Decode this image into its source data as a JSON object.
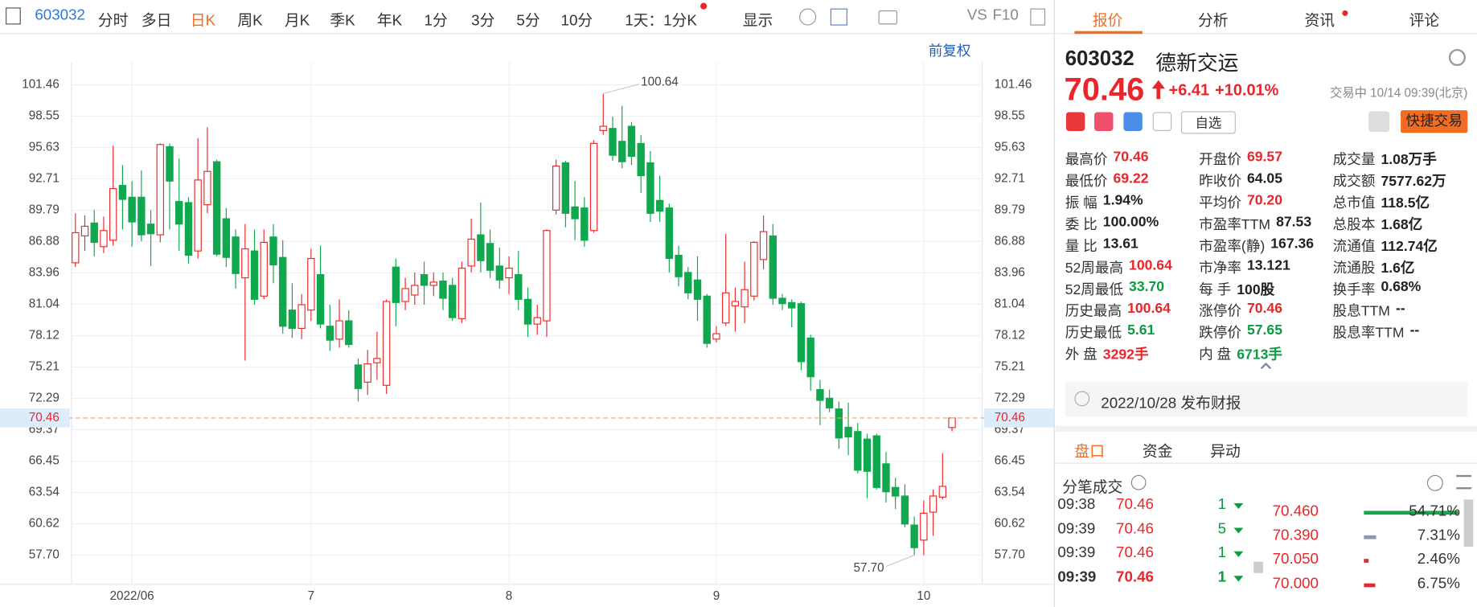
{
  "toolbar": {
    "code": "603032",
    "periods": [
      "分时",
      "多日",
      "日K",
      "周K",
      "月K",
      "季K",
      "年K",
      "1分",
      "3分",
      "5分",
      "10分"
    ],
    "active": 2,
    "range": "1天：1分K",
    "display": "显示",
    "vs": "VS",
    "f10": "F10",
    "adjust": "前复权"
  },
  "chart_data": {
    "type": "candlestick",
    "categories": [
      null,
      null,
      null,
      null,
      null,
      null,
      "2022/06",
      null,
      null,
      null,
      null,
      null,
      null,
      null,
      null,
      null,
      null,
      null,
      null,
      null,
      null,
      null,
      null,
      null,
      null,
      "7",
      null,
      null,
      null,
      null,
      null,
      null,
      null,
      null,
      null,
      null,
      null,
      null,
      null,
      null,
      null,
      null,
      null,
      null,
      null,
      null,
      "8",
      null,
      null,
      null,
      null,
      null,
      null,
      null,
      null,
      null,
      null,
      null,
      null,
      null,
      null,
      null,
      null,
      null,
      null,
      null,
      null,
      null,
      "9",
      null,
      null,
      null,
      null,
      null,
      null,
      null,
      null,
      null,
      null,
      null,
      null,
      null,
      null,
      null,
      null,
      null,
      null,
      null,
      null,
      null,
      "10",
      null,
      null,
      null
    ],
    "open": [
      84.9,
      87.4,
      88.6,
      86.4,
      87,
      92.1,
      91,
      91,
      88.5,
      87.5,
      95.7,
      90.6,
      90.5,
      86,
      90.3,
      94.3,
      89,
      87.3,
      83.5,
      86,
      81.8,
      87.3,
      85.4,
      80.5,
      78.8,
      80.5,
      83.8,
      79,
      77.8,
      79.5,
      75.4,
      73.8,
      75.6,
      73.5,
      84.5,
      81.3,
      81.9,
      83.8,
      82.8,
      83.2,
      82.8,
      79.7,
      84.6,
      87.5,
      86.7,
      84.6,
      83.5,
      83.8,
      81.5,
      79.2,
      79.5,
      89.8,
      94.2,
      90.1,
      90,
      87.9,
      97.2,
      97.4,
      96.2,
      97.6,
      96,
      94.2,
      90.7,
      90,
      85.6,
      84,
      83.3,
      81.8,
      77.8,
      79.3,
      80.9,
      80.8,
      81.8,
      85.2,
      87.4,
      81.6,
      81.2,
      81.1,
      77.9,
      73.1,
      72.3,
      71.3,
      69.6,
      69.2,
      68.5,
      68.8,
      66.2,
      64,
      63.2,
      60.5,
      59.1,
      61.7,
      63.1,
      69.57
    ],
    "close": [
      87.7,
      88.3,
      86.8,
      87.9,
      91.8,
      90.8,
      88.7,
      87.5,
      87.6,
      95.9,
      92.5,
      88.5,
      85.6,
      92.6,
      93.4,
      85.7,
      85.4,
      83.9,
      86.2,
      81.5,
      86.8,
      84.7,
      79,
      78.8,
      81,
      85.3,
      79.2,
      77.7,
      79.5,
      77.3,
      73.2,
      75.5,
      76,
      81.3,
      81.2,
      82.5,
      82.8,
      82.8,
      83.1,
      81.6,
      79.8,
      84.4,
      87.1,
      85.1,
      84.2,
      83.3,
      84.4,
      81.5,
      79.2,
      79.8,
      87.9,
      93.9,
      89.5,
      89,
      87,
      96,
      97.6,
      94.9,
      94.3,
      94.8,
      93,
      89.5,
      89.7,
      85.3,
      83.6,
      82.1,
      81.5,
      77.4,
      78.3,
      82.1,
      81.3,
      82.4,
      86.8,
      87.8,
      81.6,
      81.1,
      80.7,
      75.7,
      74.3,
      72.1,
      71.4,
      68.6,
      68.7,
      65.6,
      65.5,
      64,
      63.6,
      63.2,
      60.6,
      58.4,
      61.6,
      63.2,
      64.1,
      70.46
    ],
    "high": [
      89.5,
      89.3,
      89.8,
      89.2,
      95.8,
      94,
      92.5,
      93.5,
      89.8,
      96,
      96,
      94.6,
      91,
      96.5,
      97.5,
      94.5,
      90,
      88,
      88.5,
      88,
      88,
      88.5,
      87,
      83,
      82,
      86.2,
      86.5,
      81,
      81.5,
      80.5,
      76,
      76.8,
      78.5,
      81.5,
      85.3,
      83.5,
      84,
      85,
      84,
      84,
      83.5,
      85,
      89,
      90.5,
      88,
      86.3,
      85.5,
      86,
      82.6,
      81,
      88,
      94.5,
      94.4,
      92.5,
      91,
      96.3,
      100.64,
      98.5,
      99.5,
      98,
      96.8,
      95.3,
      93,
      90.4,
      86.5,
      84.5,
      85.5,
      82,
      79,
      87.6,
      82.6,
      85,
      86.9,
      89.3,
      88.5,
      82,
      81.5,
      81.3,
      78.2,
      74,
      73.1,
      72,
      71.9,
      70,
      69,
      69,
      67.3,
      64.9,
      64.3,
      61.3,
      62.8,
      63.8,
      67.2,
      70.46
    ],
    "low": [
      84.5,
      86,
      85.5,
      85.8,
      86.5,
      88,
      86.4,
      86.9,
      84.6,
      86.8,
      88,
      86,
      84.8,
      85.3,
      89.5,
      85.5,
      84.5,
      82.5,
      75.8,
      81,
      81.5,
      83,
      78.3,
      77.9,
      77.8,
      79.5,
      78.8,
      76.7,
      77,
      77,
      72,
      72.6,
      74,
      72.7,
      79,
      80.5,
      81,
      81,
      81.8,
      80.5,
      79.5,
      79.3,
      84,
      84,
      83.5,
      82.5,
      82,
      80.5,
      78,
      78.2,
      78,
      89.4,
      88.2,
      87,
      86.4,
      87.7,
      96.8,
      94.4,
      93.7,
      94,
      91.4,
      88.7,
      88.7,
      84,
      82.7,
      81.5,
      79.5,
      77,
      77.5,
      79,
      78.5,
      79.3,
      81.4,
      84.3,
      81,
      80.5,
      78.9,
      74.9,
      73,
      69.8,
      71,
      67.6,
      67,
      65.3,
      63,
      63.8,
      62.6,
      62,
      60.3,
      57.7,
      57.7,
      59.5,
      62.9,
      69.22
    ],
    "up_color": "#ee2b2b",
    "down_color": "#10a84e",
    "price_line_color": "#f5a25d",
    "ylim": [
      55.16,
      105.84
    ],
    "yticks": [
      101.46,
      98.55,
      95.63,
      92.71,
      89.79,
      86.88,
      83.96,
      81.04,
      78.12,
      75.21,
      72.29,
      69.37,
      66.45,
      63.54,
      60.62,
      {
        "value": 57.7,
        "label": "57.70"
      }
    ],
    "annotations": [
      "100.64",
      "57.70"
    ],
    "grid": true
  },
  "panel": {
    "tabs": [
      "报价",
      "分析",
      "资讯",
      "评论"
    ],
    "code": "603032",
    "name": "德新交运",
    "price": "70.46",
    "change": "+6.41",
    "change_pct": "+10.01%",
    "status": "交易中 10/14 09:39(北京)",
    "watch": "自选",
    "quick_trade": "快捷交易",
    "stats": [
      [
        {
          "label": "最高价",
          "value": "70.46",
          "color": "#e8262b"
        },
        {
          "label": "最低价",
          "value": "69.22",
          "color": "#e8262b"
        },
        {
          "label": "振 幅",
          "value": "1.94%",
          "color": "#222"
        },
        {
          "label": "委 比",
          "value": "100.00%",
          "color": "#222"
        },
        {
          "label": "量 比",
          "value": "13.61",
          "color": "#222"
        },
        {
          "label": "52周最高",
          "value": "100.64",
          "color": "#e8262b"
        },
        {
          "label": "52周最低",
          "value": "33.70",
          "color": "#0d9b41"
        },
        {
          "label": "历史最高",
          "value": "100.64",
          "color": "#e8262b"
        },
        {
          "label": "历史最低",
          "value": "5.61",
          "color": "#0d9b41"
        },
        {
          "label": "外 盘",
          "value": "3292手",
          "color": "#e8262b"
        }
      ],
      [
        {
          "label": "开盘价",
          "value": "69.57",
          "color": "#e8262b"
        },
        {
          "label": "昨收价",
          "value": "64.05",
          "color": "#222"
        },
        {
          "label": "平均价",
          "value": "70.20",
          "color": "#e8262b"
        },
        {
          "label": "市盈率TTM",
          "value": "87.53",
          "color": "#222"
        },
        {
          "label": "市盈率(静)",
          "value": "167.36",
          "color": "#222"
        },
        {
          "label": "市净率",
          "value": "13.121",
          "color": "#222"
        },
        {
          "label": "每 手",
          "value": "100股",
          "color": "#222"
        },
        {
          "label": "涨停价",
          "value": "70.46",
          "color": "#e8262b"
        },
        {
          "label": "跌停价",
          "value": "57.65",
          "color": "#0d9b41"
        },
        {
          "label": "内 盘",
          "value": "6713手",
          "color": "#0d9b41"
        }
      ],
      [
        {
          "label": "成交量",
          "value": "1.08万手",
          "color": "#222"
        },
        {
          "label": "成交额",
          "value": "7577.62万",
          "color": "#222"
        },
        {
          "label": "总市值",
          "value": "118.5亿",
          "color": "#222"
        },
        {
          "label": "总股本",
          "value": "1.68亿",
          "color": "#222"
        },
        {
          "label": "流通值",
          "value": "112.74亿",
          "color": "#222"
        },
        {
          "label": "流通股",
          "value": "1.6亿",
          "color": "#222"
        },
        {
          "label": "换手率",
          "value": "0.68%",
          "color": "#222"
        },
        {
          "label": "股息TTM",
          "value": "--",
          "color": "#222"
        },
        {
          "label": "股息率TTM",
          "value": "--",
          "color": "#222"
        }
      ]
    ],
    "notice": "2022/10/28 发布财报",
    "sub_tabs": [
      "盘口",
      "资金",
      "异动"
    ],
    "trades_title": "分笔成交",
    "trades": [
      {
        "time": "09:38",
        "price": "70.46",
        "qty": "1"
      },
      {
        "time": "09:39",
        "price": "70.46",
        "qty": "5"
      },
      {
        "time": "09:39",
        "price": "70.46",
        "qty": "1"
      },
      {
        "time": "09:39",
        "price": "70.46",
        "qty": "1"
      }
    ],
    "book": [
      {
        "price": "70.460",
        "pct": 54.71,
        "pct_label": "54.71%",
        "color": "#14a84a"
      },
      {
        "price": "70.390",
        "pct": 7.31,
        "pct_label": "7.31%",
        "color": "#8a9aab"
      },
      {
        "price": "70.050",
        "pct": 2.46,
        "pct_label": "2.46%",
        "color": "#e8262b"
      },
      {
        "price": "70.000",
        "pct": 6.75,
        "pct_label": "6.75%",
        "color": "#e8262b"
      }
    ]
  }
}
